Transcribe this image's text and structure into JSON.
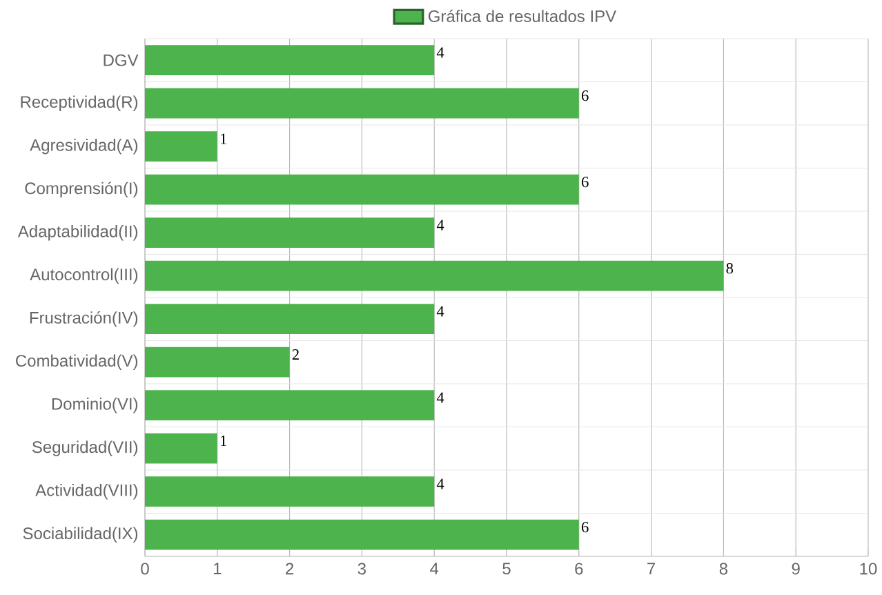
{
  "chart_data": {
    "type": "bar",
    "orientation": "horizontal",
    "categories": [
      "DGV",
      "Receptividad(R)",
      "Agresividad(A)",
      "Comprensión(I)",
      "Adaptabilidad(II)",
      "Autocontrol(III)",
      "Frustración(IV)",
      "Combatividad(V)",
      "Dominio(VI)",
      "Seguridad(VII)",
      "Actividad(VIII)",
      "Sociabilidad(IX)"
    ],
    "series": [
      {
        "name": "Gráfica de resultados IPV",
        "color": "#4db34d",
        "values": [
          4,
          6,
          1,
          6,
          4,
          8,
          4,
          2,
          4,
          1,
          4,
          6
        ]
      }
    ],
    "xlim": [
      0,
      10
    ],
    "xticks": [
      0,
      1,
      2,
      3,
      4,
      5,
      6,
      7,
      8,
      9,
      10
    ],
    "grid": true,
    "legend": "top",
    "data_labels": true
  }
}
